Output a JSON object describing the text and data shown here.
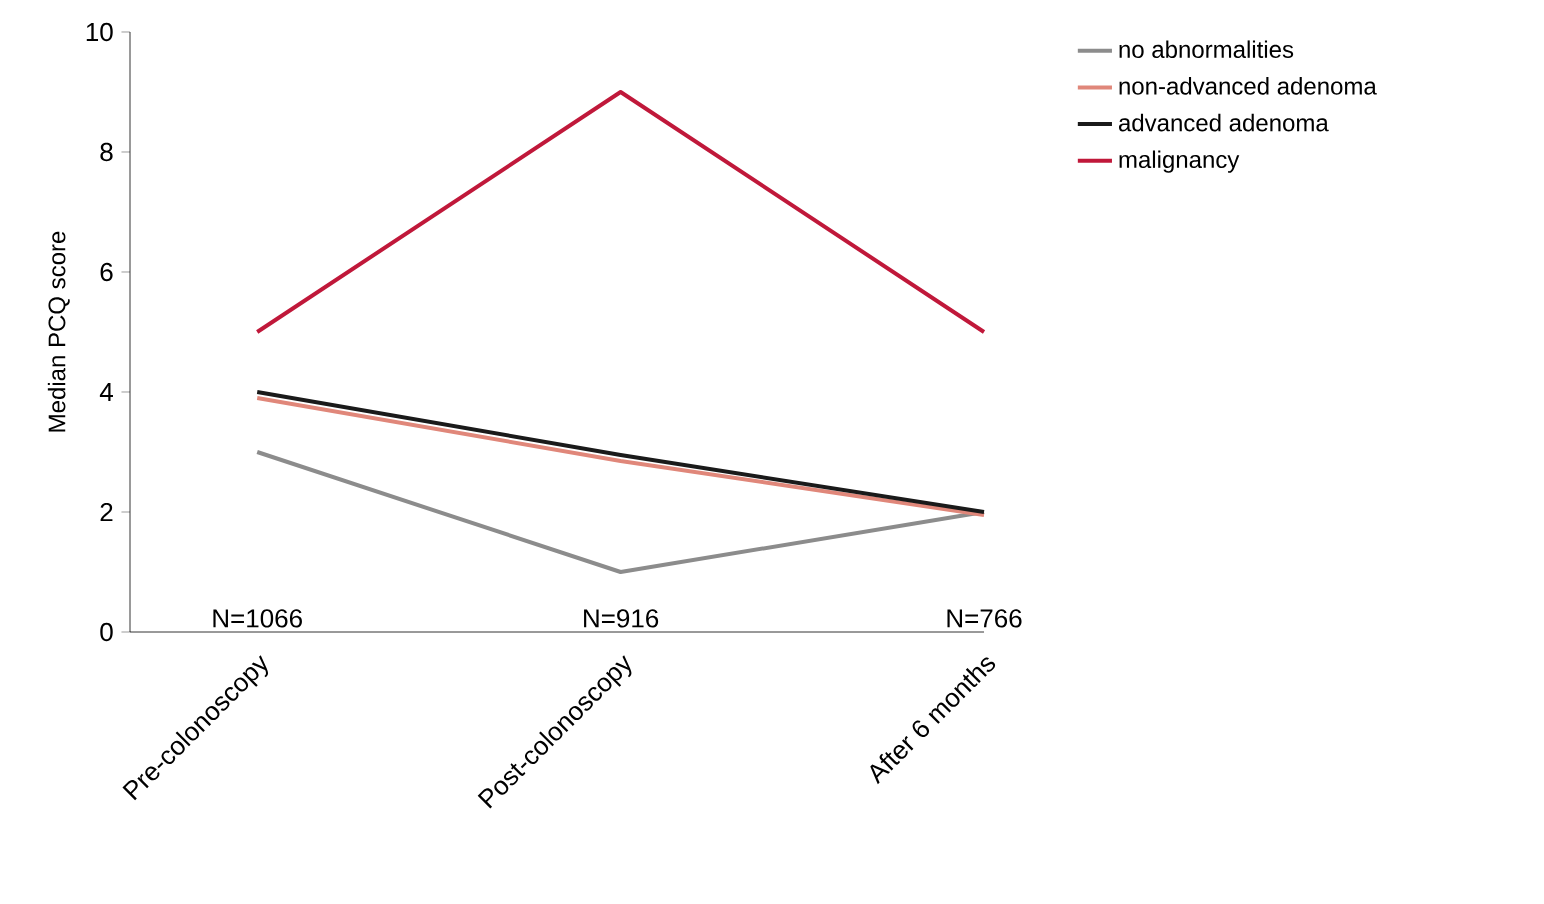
{
  "chart_data": {
    "type": "line",
    "ylabel": "Median PCQ score",
    "categories": [
      "Pre-colonoscopy",
      "Post-colonoscopy",
      "After 6 months"
    ],
    "ylim": [
      0,
      10
    ],
    "yticks": [
      0,
      2,
      4,
      6,
      8,
      10
    ],
    "series": [
      {
        "name": "no abnormalities",
        "color": "#8c8c8c",
        "values": [
          3,
          1,
          2
        ]
      },
      {
        "name": "non-advanced adenoma",
        "color": "#e0877a",
        "values": [
          3.9,
          2.85,
          1.95
        ]
      },
      {
        "name": "advanced adenoma",
        "color": "#1a1a1a",
        "values": [
          4,
          2.95,
          2
        ]
      },
      {
        "name": "malignancy",
        "color": "#c0183a",
        "values": [
          5,
          9,
          5
        ]
      }
    ],
    "annotations": [
      "N=1066",
      "N=916",
      "N=766"
    ],
    "grid": false,
    "legend": "top right",
    "marker": "none",
    "line_style": "solid"
  }
}
